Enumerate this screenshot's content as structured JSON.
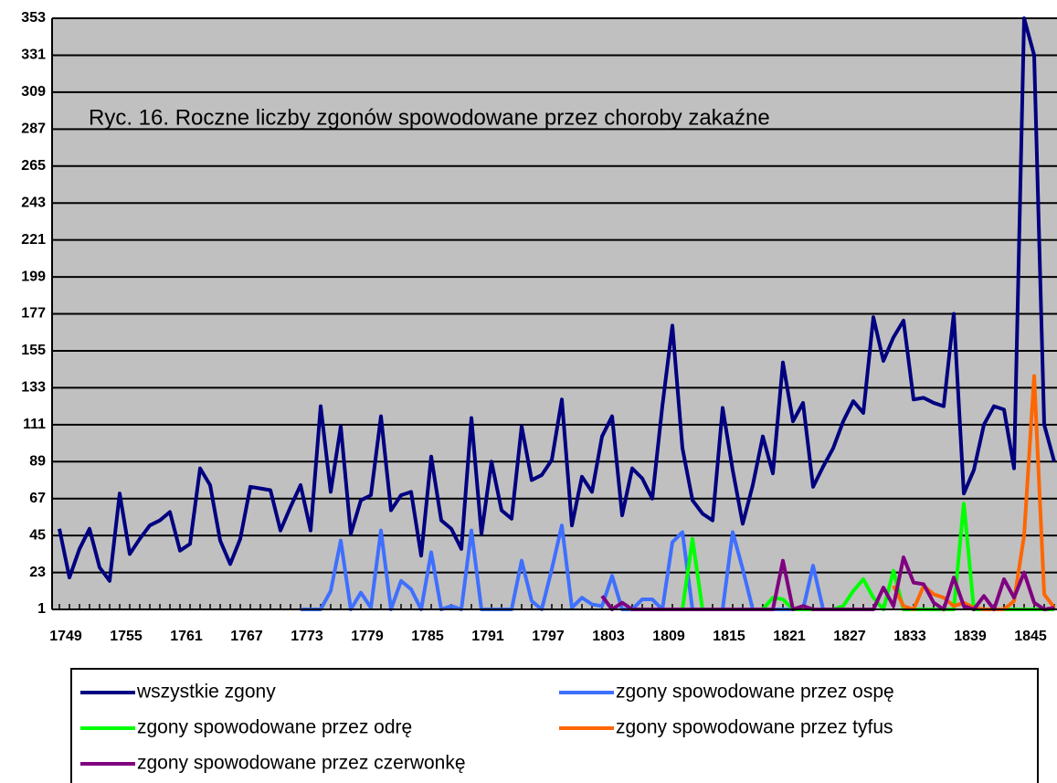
{
  "chart_data": {
    "type": "line",
    "title": "Ryc. 16. Roczne liczby zgonów spowodowane przez choroby zakaźne",
    "categories": [
      "1749",
      null,
      null,
      null,
      null,
      null,
      "1755",
      null,
      null,
      null,
      null,
      null,
      "1761",
      null,
      null,
      null,
      null,
      null,
      "1767",
      null,
      null,
      null,
      null,
      null,
      "1773",
      null,
      null,
      null,
      null,
      null,
      "1779",
      null,
      null,
      null,
      null,
      null,
      "1785",
      null,
      null,
      null,
      null,
      null,
      "1791",
      null,
      null,
      null,
      null,
      null,
      "1797",
      null,
      null,
      null,
      null,
      null,
      "1803",
      null,
      null,
      null,
      null,
      null,
      "1809",
      null,
      null,
      null,
      null,
      null,
      "1815",
      null,
      null,
      null,
      null,
      null,
      "1821",
      null,
      null,
      null,
      null,
      null,
      "1827",
      null,
      null,
      null,
      null,
      null,
      "1833",
      null,
      null,
      null,
      null,
      null,
      "1839",
      null,
      null,
      null,
      null,
      null,
      "1845",
      null,
      null,
      null
    ],
    "ylim": [
      1,
      353
    ],
    "yticks": [
      1,
      23,
      45,
      67,
      89,
      111,
      133,
      155,
      177,
      199,
      221,
      243,
      265,
      287,
      309,
      331,
      353
    ],
    "grid": true,
    "legend": "bottom",
    "series": [
      {
        "name": "wszystkie zgony",
        "color": "#000080",
        "values": [
          49,
          20,
          37,
          49,
          26,
          18,
          70,
          34,
          43,
          51,
          54,
          59,
          36,
          40,
          85,
          75,
          42,
          28,
          43,
          74,
          73,
          72,
          48,
          62,
          75,
          48,
          122,
          71,
          110,
          46,
          66,
          69,
          116,
          60,
          69,
          71,
          33,
          92,
          54,
          49,
          37,
          115,
          46,
          89,
          60,
          55,
          110,
          78,
          81,
          90,
          126,
          51,
          80,
          71,
          104,
          116,
          57,
          85,
          79,
          67,
          122,
          170,
          97,
          66,
          58,
          54,
          121,
          84,
          52,
          75,
          104,
          82,
          148,
          113,
          124,
          74,
          86,
          97,
          113,
          125,
          118,
          175,
          149,
          163,
          173,
          126,
          127,
          124,
          122,
          177,
          70,
          84,
          111,
          122,
          120,
          85,
          353,
          331,
          111,
          89
        ]
      },
      {
        "name": "zgony spowodowane przez ospę",
        "color": "#3f6fff",
        "values": [
          null,
          null,
          null,
          null,
          null,
          null,
          null,
          null,
          null,
          null,
          null,
          null,
          null,
          null,
          null,
          null,
          null,
          null,
          null,
          null,
          null,
          null,
          null,
          null,
          1,
          1,
          1,
          12,
          42,
          1,
          11,
          2,
          48,
          1,
          18,
          13,
          1,
          35,
          1,
          3,
          1,
          48,
          1,
          1,
          1,
          1,
          30,
          6,
          1,
          25,
          51,
          2,
          8,
          4,
          3,
          21,
          1,
          1,
          7,
          7,
          1,
          41,
          47,
          1,
          1,
          1,
          1,
          47,
          25,
          1,
          1,
          1,
          1,
          1,
          1,
          27,
          1,
          1,
          null,
          null,
          null,
          null,
          null,
          null,
          null,
          null,
          null,
          null,
          null,
          null,
          null,
          null,
          null,
          null,
          null,
          null,
          null,
          null,
          null,
          null
        ]
      },
      {
        "name": "zgony spowodowane przez odrę",
        "color": "#00ff00",
        "values": [
          null,
          null,
          null,
          null,
          null,
          null,
          null,
          null,
          null,
          null,
          null,
          null,
          null,
          null,
          null,
          null,
          null,
          null,
          null,
          null,
          null,
          null,
          null,
          null,
          null,
          null,
          null,
          null,
          null,
          null,
          null,
          null,
          null,
          null,
          null,
          null,
          null,
          null,
          null,
          null,
          null,
          null,
          null,
          null,
          null,
          null,
          null,
          null,
          null,
          null,
          null,
          null,
          null,
          null,
          null,
          null,
          null,
          null,
          null,
          1,
          1,
          1,
          1,
          43,
          1,
          1,
          1,
          1,
          1,
          1,
          1,
          8,
          7,
          1,
          1,
          1,
          1,
          1,
          3,
          12,
          19,
          8,
          1,
          24,
          1,
          1,
          1,
          1,
          1,
          1,
          64,
          1,
          1,
          1,
          1,
          1,
          1,
          1,
          1,
          1
        ]
      },
      {
        "name": "zgony spowodowane przez tyfus",
        "color": "#ff6600",
        "values": [
          null,
          null,
          null,
          null,
          null,
          null,
          null,
          null,
          null,
          null,
          null,
          null,
          null,
          null,
          null,
          null,
          null,
          null,
          null,
          null,
          null,
          null,
          null,
          null,
          null,
          null,
          null,
          null,
          null,
          null,
          null,
          null,
          null,
          null,
          null,
          null,
          null,
          null,
          null,
          null,
          null,
          null,
          null,
          null,
          null,
          null,
          null,
          null,
          null,
          null,
          null,
          null,
          null,
          null,
          null,
          null,
          null,
          null,
          null,
          null,
          null,
          null,
          null,
          null,
          null,
          null,
          null,
          null,
          null,
          null,
          null,
          null,
          null,
          null,
          null,
          null,
          null,
          null,
          null,
          null,
          null,
          null,
          null,
          15,
          3,
          1,
          15,
          10,
          8,
          3,
          5,
          2,
          1,
          1,
          1,
          6,
          45,
          140,
          10,
          2
        ]
      },
      {
        "name": "zgony spowodowane przez czerwonkę",
        "color": "#800080",
        "values": [
          null,
          null,
          null,
          null,
          null,
          null,
          null,
          null,
          null,
          null,
          null,
          null,
          null,
          null,
          null,
          null,
          null,
          null,
          null,
          null,
          null,
          null,
          null,
          null,
          null,
          null,
          null,
          null,
          null,
          null,
          null,
          null,
          null,
          null,
          null,
          null,
          null,
          null,
          null,
          null,
          null,
          null,
          null,
          null,
          null,
          null,
          null,
          null,
          null,
          null,
          null,
          null,
          null,
          null,
          9,
          1,
          5,
          1,
          1,
          1,
          1,
          1,
          1,
          1,
          1,
          1,
          1,
          1,
          1,
          1,
          1,
          1,
          30,
          1,
          3,
          1,
          1,
          1,
          1,
          1,
          1,
          1,
          14,
          3,
          32,
          17,
          16,
          5,
          1,
          20,
          3,
          1,
          9,
          1,
          19,
          8,
          23,
          5,
          1,
          2
        ]
      }
    ]
  }
}
